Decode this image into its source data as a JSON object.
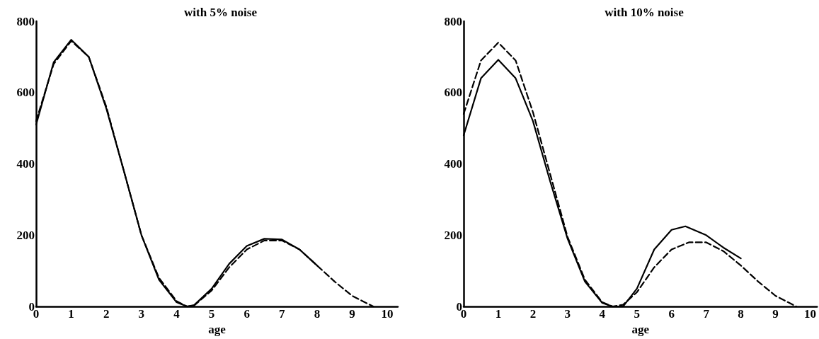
{
  "chart_data": [
    {
      "type": "line",
      "title": "with 5% noise",
      "xlabel": "age",
      "xlim": [
        0,
        10.3
      ],
      "xticks": [
        0,
        1,
        2,
        3,
        4,
        5,
        6,
        7,
        8,
        9,
        10
      ],
      "ylim": [
        0,
        800
      ],
      "yticks": [
        0,
        200,
        400,
        600,
        800
      ],
      "grid": false,
      "marker": "none",
      "series": [
        {
          "color": "#000000",
          "line_style": "dashed",
          "x": [
            0,
            0.5,
            1,
            1.5,
            2,
            2.5,
            3,
            3.5,
            4,
            4.3,
            4.5,
            5,
            5.5,
            6,
            6.5,
            7,
            7.5,
            8,
            8.5,
            9,
            9.5,
            9.6
          ],
          "values": [
            520,
            680,
            745,
            700,
            560,
            380,
            200,
            80,
            15,
            0,
            3,
            45,
            110,
            160,
            185,
            185,
            160,
            115,
            70,
            30,
            5,
            0
          ]
        },
        {
          "color": "#000000",
          "line_style": "solid",
          "x": [
            0,
            0.5,
            1,
            1.5,
            2,
            2.5,
            3,
            3.5,
            4,
            4.3,
            4.5,
            5,
            5.5,
            6,
            6.5,
            7,
            7.5,
            8
          ],
          "values": [
            510,
            685,
            748,
            700,
            555,
            380,
            200,
            75,
            12,
            0,
            4,
            50,
            120,
            170,
            190,
            188,
            160,
            115
          ]
        }
      ]
    },
    {
      "type": "line",
      "title": "with 10% noise",
      "xlabel": "age",
      "xlim": [
        0,
        10.2
      ],
      "xticks": [
        0,
        1,
        2,
        3,
        4,
        5,
        6,
        7,
        8,
        9,
        10
      ],
      "ylim": [
        0,
        800
      ],
      "yticks": [
        0,
        200,
        400,
        600,
        800
      ],
      "grid": false,
      "marker": "none",
      "series": [
        {
          "color": "#000000",
          "line_style": "dashed",
          "x": [
            0,
            0.5,
            1,
            1.5,
            2,
            2.5,
            3,
            3.5,
            4,
            4.3,
            4.6,
            5,
            5.5,
            6,
            6.5,
            7,
            7.5,
            8,
            8.5,
            9,
            9.5,
            9.6
          ],
          "values": [
            540,
            690,
            740,
            690,
            545,
            370,
            195,
            75,
            12,
            0,
            5,
            40,
            110,
            160,
            180,
            180,
            155,
            115,
            70,
            30,
            5,
            0
          ]
        },
        {
          "color": "#000000",
          "line_style": "solid",
          "x": [
            0,
            0.5,
            1,
            1.5,
            2,
            2.5,
            3,
            3.5,
            4,
            4.3,
            4.6,
            5,
            5.5,
            6,
            6.4,
            7,
            7.5,
            8
          ],
          "values": [
            480,
            640,
            692,
            640,
            520,
            350,
            190,
            70,
            10,
            0,
            0,
            50,
            160,
            215,
            225,
            200,
            165,
            135
          ]
        }
      ]
    }
  ]
}
